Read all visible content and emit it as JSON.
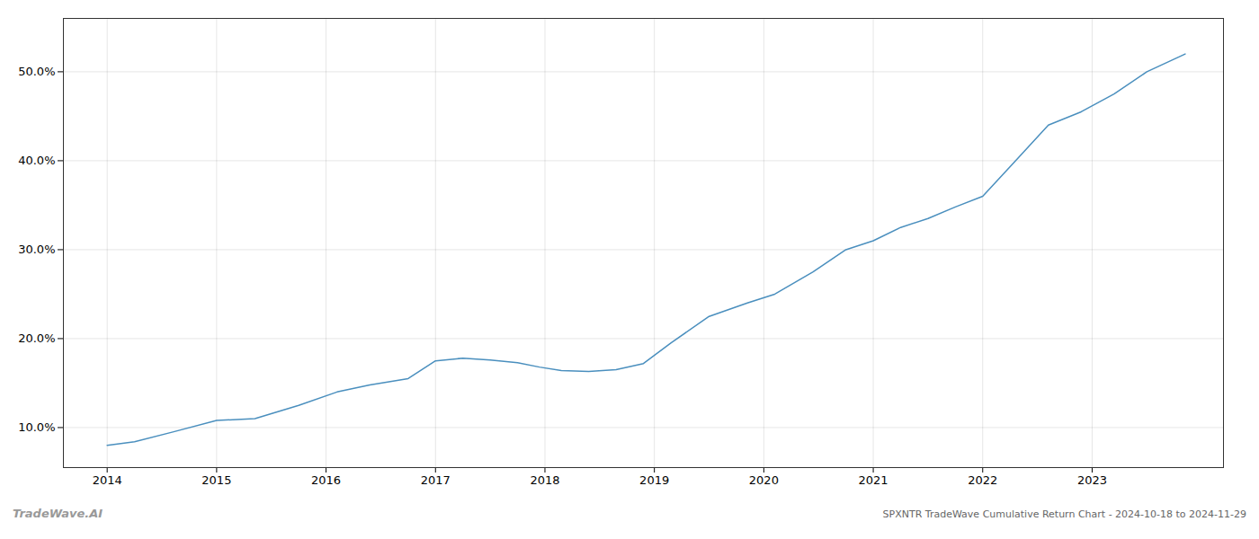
{
  "chart_data": {
    "type": "line",
    "title": "SPXNTR TradeWave Cumulative Return Chart - 2024-10-18 to 2024-11-29",
    "annotations": [
      "TradeWave.AI"
    ],
    "x": [
      2014.0,
      2014.25,
      2014.6,
      2015.0,
      2015.35,
      2015.75,
      2016.1,
      2016.4,
      2016.75,
      2017.0,
      2017.25,
      2017.5,
      2017.75,
      2017.95,
      2018.15,
      2018.4,
      2018.65,
      2018.9,
      2019.15,
      2019.5,
      2019.85,
      2020.1,
      2020.45,
      2020.75,
      2021.0,
      2021.25,
      2021.5,
      2021.75,
      2022.0,
      2022.3,
      2022.6,
      2022.9,
      2023.2,
      2023.5,
      2023.85
    ],
    "values": [
      8.0,
      8.4,
      9.5,
      10.8,
      11.0,
      12.5,
      14.0,
      14.8,
      15.5,
      17.5,
      17.8,
      17.6,
      17.3,
      16.8,
      16.4,
      16.3,
      16.5,
      17.2,
      19.5,
      22.5,
      24.0,
      25.0,
      27.5,
      30.0,
      31.0,
      32.5,
      33.5,
      34.8,
      36.0,
      40.0,
      44.0,
      45.5,
      47.5,
      50.0,
      52.0
    ],
    "color": "#4a8fbe",
    "xlim": [
      2013.6,
      2024.2
    ],
    "xticks": [
      2014,
      2015,
      2016,
      2017,
      2018,
      2019,
      2020,
      2021,
      2022,
      2023
    ],
    "ylim": [
      5.5,
      56.0
    ],
    "yticks": [
      {
        "value": 10.0,
        "label": "10.0%"
      },
      {
        "value": 20.0,
        "label": "20.0%"
      },
      {
        "value": 30.0,
        "label": "30.0%"
      },
      {
        "value": 40.0,
        "label": "40.0%"
      },
      {
        "value": 50.0,
        "label": "50.0%"
      }
    ],
    "grid": true
  }
}
